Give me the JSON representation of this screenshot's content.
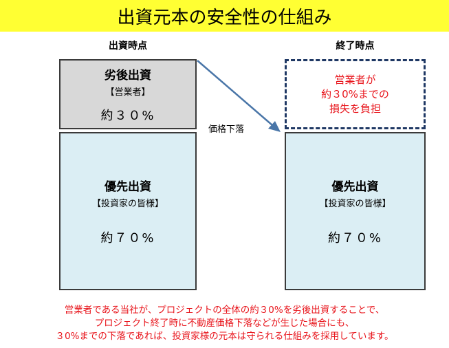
{
  "title": "出資元本の安全性の仕組み",
  "columns": {
    "left_label": "出資時点",
    "right_label": "終了時点"
  },
  "left": {
    "subordinate": {
      "title": "劣後出資",
      "sub": "【営業者】",
      "pct": "約３０%"
    },
    "senior": {
      "title": "優先出資",
      "sub": "【投資家の皆様】",
      "pct": "約７０%"
    }
  },
  "right": {
    "loss_box": {
      "line1": "営業者が",
      "line2": "約３0%までの",
      "line3": "損失を負担"
    },
    "senior": {
      "title": "優先出資",
      "sub": "【投資家の皆様】",
      "pct": "約７０%"
    }
  },
  "arrow_label": "価格下落",
  "explanation": {
    "line1": "営業者である当社が、プロジェクトの全体の約３0%を劣後出資することで、",
    "line2": "プロジェクト終了時に不動産価格下落などが生じた場合にも、",
    "line3": "３0%までの下落であれば、投資家様の元本は守られる仕組みを採用しています。"
  },
  "colors": {
    "title_bg": "#ffff33",
    "subordinate_fill": "#d8d8d8",
    "senior_fill": "#dbeef4",
    "arrow": "#4a76a8",
    "highlight_text": "#e8141b",
    "dashed_border": "#1f3864"
  }
}
